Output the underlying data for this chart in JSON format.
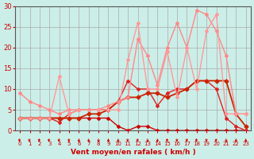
{
  "background_color": "#cceee8",
  "grid_color": "#aaaaaa",
  "xlabel": "Vent moyen/en rafales ( km/h )",
  "xlabel_color": "#cc0000",
  "tick_color": "#cc0000",
  "axis_color": "#555555",
  "xlim": [
    -0.5,
    23.5
  ],
  "ylim": [
    0,
    30
  ],
  "xticks": [
    0,
    1,
    2,
    3,
    4,
    5,
    6,
    7,
    8,
    9,
    10,
    11,
    12,
    13,
    14,
    15,
    16,
    17,
    18,
    19,
    20,
    21,
    22,
    23
  ],
  "yticks": [
    0,
    5,
    10,
    15,
    20,
    25,
    30
  ],
  "series": [
    {
      "x": [
        0,
        1,
        2,
        3,
        4,
        5,
        6,
        7,
        8,
        9,
        10,
        11,
        12,
        13,
        14,
        15,
        16,
        17,
        18,
        19,
        20,
        21,
        22,
        23
      ],
      "y": [
        3,
        3,
        3,
        3,
        3,
        3,
        3,
        3,
        3,
        3,
        1,
        0,
        1,
        1,
        0,
        0,
        0,
        0,
        0,
        0,
        0,
        0,
        0,
        0
      ],
      "color": "#cc0000",
      "linewidth": 1.0,
      "marker": "D",
      "markersize": 2.0
    },
    {
      "x": [
        0,
        1,
        2,
        3,
        4,
        5,
        6,
        7,
        8,
        9,
        10,
        11,
        12,
        13,
        14,
        15,
        16,
        17,
        18,
        19,
        20,
        21,
        22,
        23
      ],
      "y": [
        3,
        3,
        3,
        3,
        2,
        4,
        5,
        5,
        5,
        5,
        7,
        12,
        10,
        10,
        6,
        9,
        10,
        10,
        12,
        12,
        10,
        3,
        1,
        0
      ],
      "color": "#dd2222",
      "linewidth": 1.0,
      "marker": "D",
      "markersize": 2.0
    },
    {
      "x": [
        0,
        1,
        2,
        3,
        4,
        5,
        6,
        7,
        8,
        9,
        10,
        11,
        12,
        13,
        14,
        15,
        16,
        17,
        18,
        19,
        20,
        21,
        22,
        23
      ],
      "y": [
        3,
        3,
        3,
        3,
        3,
        3,
        3,
        4,
        4,
        5,
        7,
        8,
        8,
        9,
        9,
        8,
        9,
        10,
        12,
        12,
        12,
        12,
        4,
        1
      ],
      "color": "#cc2200",
      "linewidth": 1.3,
      "marker": "D",
      "markersize": 2.5
    },
    {
      "x": [
        0,
        1,
        2,
        3,
        4,
        5,
        6,
        7,
        8,
        9,
        10,
        11,
        12,
        13,
        14,
        15,
        16,
        17,
        18,
        19,
        20,
        21,
        22,
        23
      ],
      "y": [
        9,
        7,
        6,
        5,
        4,
        5,
        5,
        5,
        5,
        6,
        7,
        8,
        22,
        18,
        11,
        20,
        26,
        20,
        29,
        28,
        24,
        18,
        4,
        4
      ],
      "color": "#ff8888",
      "linewidth": 1.0,
      "marker": "D",
      "markersize": 2.0
    },
    {
      "x": [
        0,
        1,
        2,
        3,
        4,
        5,
        6,
        7,
        8,
        9,
        10,
        11,
        12,
        13,
        14,
        15,
        16,
        17,
        18,
        19,
        20,
        21,
        22,
        23
      ],
      "y": [
        3,
        3,
        3,
        3,
        13,
        4,
        5,
        5,
        5,
        5,
        5,
        17,
        26,
        10,
        10,
        19,
        8,
        20,
        10,
        24,
        28,
        4,
        4,
        4
      ],
      "color": "#ff9999",
      "linewidth": 1.0,
      "marker": "D",
      "markersize": 2.0
    }
  ],
  "wind_arrows": {
    "x": [
      0,
      1,
      2,
      3,
      4,
      5,
      6,
      7,
      8,
      9,
      10,
      11,
      12,
      13,
      14,
      15,
      16,
      17,
      18,
      19,
      20,
      21,
      22,
      23
    ],
    "dx": [
      -0.15,
      -0.15,
      -0.15,
      -0.15,
      -0.1,
      -0.05,
      0,
      0,
      0,
      0,
      0,
      -0.1,
      -0.1,
      0,
      0,
      -0.05,
      -0.05,
      -0.05,
      -0.1,
      -0.05,
      -0.1,
      0,
      0,
      0
    ],
    "dy": [
      -0.8,
      -0.8,
      -0.8,
      -0.8,
      -0.8,
      -0.8,
      -0.9,
      -0.9,
      -0.9,
      -0.9,
      -0.9,
      -0.8,
      -0.8,
      -0.9,
      -0.9,
      -0.8,
      -0.8,
      -0.8,
      -0.8,
      -0.8,
      -0.8,
      -0.9,
      -0.9,
      -0.9
    ],
    "color": "#cc0000"
  }
}
